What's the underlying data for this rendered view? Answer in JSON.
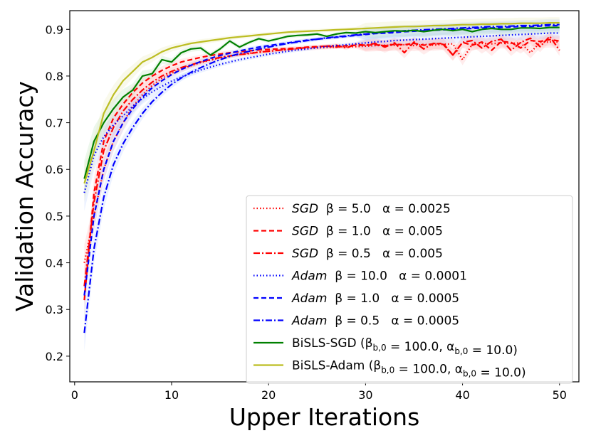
{
  "chart_data": {
    "type": "line",
    "title": "",
    "xlabel": "Upper Iterations",
    "ylabel": "Validation Accuracy",
    "xlim": [
      -0.5,
      52
    ],
    "ylim": [
      0.145,
      0.94
    ],
    "xticks": [
      0,
      10,
      20,
      30,
      40,
      50
    ],
    "yticks": [
      0.2,
      0.3,
      0.4,
      0.5,
      0.6,
      0.7,
      0.8,
      0.9
    ],
    "xtick_labels": [
      "0",
      "10",
      "20",
      "30",
      "40",
      "50"
    ],
    "ytick_labels": [
      "0.2",
      "0.3",
      "0.4",
      "0.5",
      "0.6",
      "0.7",
      "0.8",
      "0.9"
    ],
    "grid": false,
    "legend_position": "lower-right",
    "series": [
      {
        "name": "SGD β=5.0 α=0.0025",
        "legend": {
          "italic": "SGD",
          "rest": "  β = 5.0   α = 0.0025"
        },
        "color": "#ff0000",
        "dash": "dotted",
        "band_color": "#ffb3b3",
        "values": [
          0.4,
          0.5,
          0.6,
          0.66,
          0.7,
          0.735,
          0.76,
          0.78,
          0.795,
          0.806,
          0.815,
          0.822,
          0.829,
          0.834,
          0.839,
          0.843,
          0.846,
          0.849,
          0.851,
          0.853,
          0.855,
          0.857,
          0.858,
          0.859,
          0.86,
          0.861,
          0.862,
          0.863,
          0.863,
          0.864,
          0.865,
          0.866,
          0.866,
          0.867,
          0.865,
          0.868,
          0.866,
          0.868,
          0.869,
          0.835,
          0.868,
          0.87,
          0.869,
          0.871,
          0.87,
          0.871,
          0.85,
          0.872,
          0.873,
          0.873
        ]
      },
      {
        "name": "SGD β=1.0 α=0.005",
        "legend": {
          "italic": "SGD",
          "rest": "  β = 1.0   α = 0.005"
        },
        "color": "#ff0000",
        "dash": "dashed",
        "band_color": "#ffb3b3",
        "values": [
          0.32,
          0.55,
          0.66,
          0.71,
          0.74,
          0.765,
          0.785,
          0.8,
          0.812,
          0.822,
          0.83,
          0.835,
          0.84,
          0.844,
          0.847,
          0.85,
          0.852,
          0.854,
          0.856,
          0.857,
          0.858,
          0.859,
          0.86,
          0.862,
          0.863,
          0.864,
          0.862,
          0.865,
          0.866,
          0.866,
          0.867,
          0.865,
          0.868,
          0.867,
          0.87,
          0.866,
          0.869,
          0.87,
          0.845,
          0.872,
          0.866,
          0.873,
          0.855,
          0.874,
          0.872,
          0.86,
          0.876,
          0.874,
          0.878,
          0.875
        ]
      },
      {
        "name": "SGD β=0.5 α=0.005",
        "legend": {
          "italic": "SGD",
          "rest": "  β = 0.5   α = 0.005"
        },
        "color": "#ff0000",
        "dash": "dashdot",
        "band_color": "#ffb3b3",
        "values": [
          0.35,
          0.53,
          0.64,
          0.69,
          0.725,
          0.75,
          0.77,
          0.787,
          0.8,
          0.81,
          0.818,
          0.824,
          0.83,
          0.835,
          0.84,
          0.843,
          0.846,
          0.848,
          0.851,
          0.853,
          0.855,
          0.857,
          0.859,
          0.861,
          0.862,
          0.864,
          0.866,
          0.86,
          0.868,
          0.866,
          0.87,
          0.862,
          0.871,
          0.85,
          0.873,
          0.858,
          0.87,
          0.868,
          0.845,
          0.872,
          0.876,
          0.86,
          0.874,
          0.879,
          0.855,
          0.872,
          0.881,
          0.863,
          0.885,
          0.855
        ]
      },
      {
        "name": "Adam β=10.0 α=0.0001",
        "legend": {
          "italic": "Adam",
          "rest": "  β = 10.0   α = 0.0001"
        },
        "color": "#0000ff",
        "dash": "dotted",
        "band_color": "#b3ccff",
        "values": [
          0.55,
          0.63,
          0.67,
          0.695,
          0.715,
          0.735,
          0.752,
          0.766,
          0.778,
          0.789,
          0.798,
          0.806,
          0.813,
          0.819,
          0.825,
          0.83,
          0.835,
          0.839,
          0.843,
          0.847,
          0.85,
          0.853,
          0.856,
          0.858,
          0.861,
          0.863,
          0.865,
          0.867,
          0.869,
          0.871,
          0.873,
          0.874,
          0.876,
          0.877,
          0.878,
          0.879,
          0.88,
          0.881,
          0.882,
          0.883,
          0.884,
          0.885,
          0.886,
          0.887,
          0.888,
          0.889,
          0.89,
          0.891,
          0.892,
          0.892
        ]
      },
      {
        "name": "Adam β=1.0 α=0.0005",
        "legend": {
          "italic": "Adam",
          "rest": "  β = 1.0   α = 0.0005"
        },
        "color": "#0000ff",
        "dash": "dashed",
        "band_color": "#b3ccff",
        "values": [
          0.33,
          0.5,
          0.6,
          0.66,
          0.7,
          0.73,
          0.755,
          0.775,
          0.79,
          0.803,
          0.814,
          0.823,
          0.831,
          0.838,
          0.844,
          0.849,
          0.854,
          0.858,
          0.862,
          0.865,
          0.868,
          0.871,
          0.874,
          0.877,
          0.879,
          0.881,
          0.883,
          0.885,
          0.887,
          0.889,
          0.891,
          0.892,
          0.893,
          0.895,
          0.896,
          0.897,
          0.898,
          0.899,
          0.9,
          0.901,
          0.902,
          0.903,
          0.903,
          0.904,
          0.905,
          0.906,
          0.906,
          0.907,
          0.908,
          0.908
        ]
      },
      {
        "name": "Adam β=0.5 α=0.0005",
        "legend": {
          "italic": "Adam",
          "rest": "  β = 0.5   α = 0.0005"
        },
        "color": "#0000ff",
        "dash": "dashdot",
        "band_color": "#b3ccff",
        "values": [
          0.25,
          0.43,
          0.54,
          0.61,
          0.655,
          0.69,
          0.72,
          0.745,
          0.765,
          0.782,
          0.796,
          0.808,
          0.818,
          0.827,
          0.835,
          0.842,
          0.848,
          0.853,
          0.858,
          0.862,
          0.866,
          0.87,
          0.873,
          0.876,
          0.879,
          0.882,
          0.884,
          0.886,
          0.888,
          0.89,
          0.892,
          0.894,
          0.895,
          0.897,
          0.898,
          0.899,
          0.9,
          0.901,
          0.902,
          0.903,
          0.904,
          0.905,
          0.906,
          0.906,
          0.907,
          0.908,
          0.908,
          0.909,
          0.91,
          0.91
        ]
      },
      {
        "name": "BiSLS-SGD (β_{b,0}=100.0, α_{b,0}=10.0)",
        "legend": {
          "italic": "",
          "rest": "BiSLS-SGD (β_{b,0} = 100.0, α_{b,0} = 10.0)"
        },
        "color": "#008000",
        "dash": "solid",
        "band_color": "#b3e0b3",
        "values": [
          0.58,
          0.66,
          0.7,
          0.73,
          0.755,
          0.77,
          0.8,
          0.805,
          0.835,
          0.83,
          0.85,
          0.858,
          0.86,
          0.845,
          0.858,
          0.875,
          0.862,
          0.872,
          0.88,
          0.875,
          0.88,
          0.885,
          0.887,
          0.888,
          0.89,
          0.885,
          0.89,
          0.893,
          0.892,
          0.895,
          0.893,
          0.895,
          0.897,
          0.896,
          0.898,
          0.895,
          0.898,
          0.9,
          0.897,
          0.9,
          0.895,
          0.9,
          0.902,
          0.9,
          0.9,
          0.903,
          0.903,
          0.902,
          0.904,
          0.904
        ]
      },
      {
        "name": "BiSLS-Adam (β_{b,0}=100.0, α_{b,0}=10.0)",
        "legend": {
          "italic": "",
          "rest": "BiSLS-Adam (β_{b,0} = 100.0, α_{b,0} = 10.0)"
        },
        "color": "#bcbd22",
        "dash": "solid",
        "band_color": "#e8e8b0",
        "values": [
          0.57,
          0.64,
          0.72,
          0.76,
          0.79,
          0.81,
          0.83,
          0.84,
          0.852,
          0.86,
          0.865,
          0.87,
          0.873,
          0.876,
          0.879,
          0.882,
          0.884,
          0.886,
          0.888,
          0.89,
          0.892,
          0.894,
          0.895,
          0.896,
          0.897,
          0.898,
          0.899,
          0.9,
          0.901,
          0.902,
          0.903,
          0.904,
          0.905,
          0.906,
          0.906,
          0.907,
          0.908,
          0.908,
          0.909,
          0.91,
          0.91,
          0.911,
          0.911,
          0.912,
          0.912,
          0.913,
          0.913,
          0.913,
          0.914,
          0.914
        ]
      }
    ]
  }
}
